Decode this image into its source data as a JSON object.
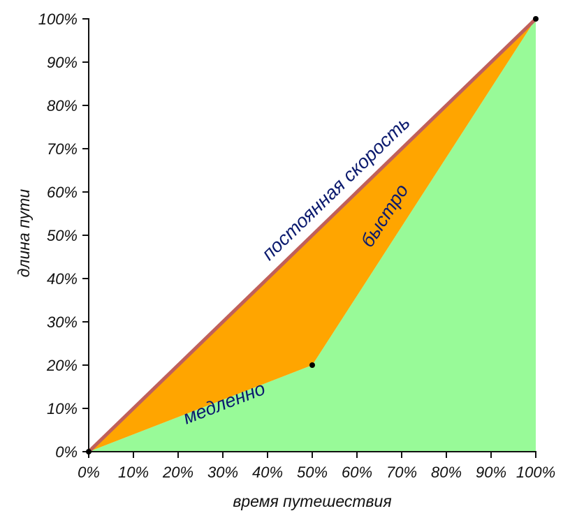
{
  "chart_data": {
    "type": "area",
    "xlabel": "время путешествия",
    "ylabel": "длина пути",
    "xlim": [
      0,
      100
    ],
    "ylim": [
      0,
      100
    ],
    "x_ticks": [
      "0%",
      "10%",
      "20%",
      "30%",
      "40%",
      "50%",
      "60%",
      "70%",
      "80%",
      "90%",
      "100%"
    ],
    "y_ticks": [
      "0%",
      "10%",
      "20%",
      "30%",
      "40%",
      "50%",
      "60%",
      "70%",
      "80%",
      "90%",
      "100%"
    ],
    "series": [
      {
        "name": "постоянная скорость",
        "points": [
          {
            "x": 0,
            "y": 0
          },
          {
            "x": 100,
            "y": 100
          }
        ],
        "color": "#c0605a"
      },
      {
        "points": [
          {
            "x": 0,
            "y": 0
          },
          {
            "x": 50,
            "y": 20
          },
          {
            "x": 100,
            "y": 100
          }
        ],
        "color": "#000000"
      }
    ],
    "regions": [
      {
        "fill": "#ffa500"
      },
      {
        "fill": "#98fa98"
      }
    ],
    "segment_labels": [
      "медленно",
      "быстро"
    ],
    "markers": [
      {
        "x": 0,
        "y": 0
      },
      {
        "x": 50,
        "y": 20
      },
      {
        "x": 100,
        "y": 100
      }
    ],
    "grid": false,
    "legend": "none"
  }
}
